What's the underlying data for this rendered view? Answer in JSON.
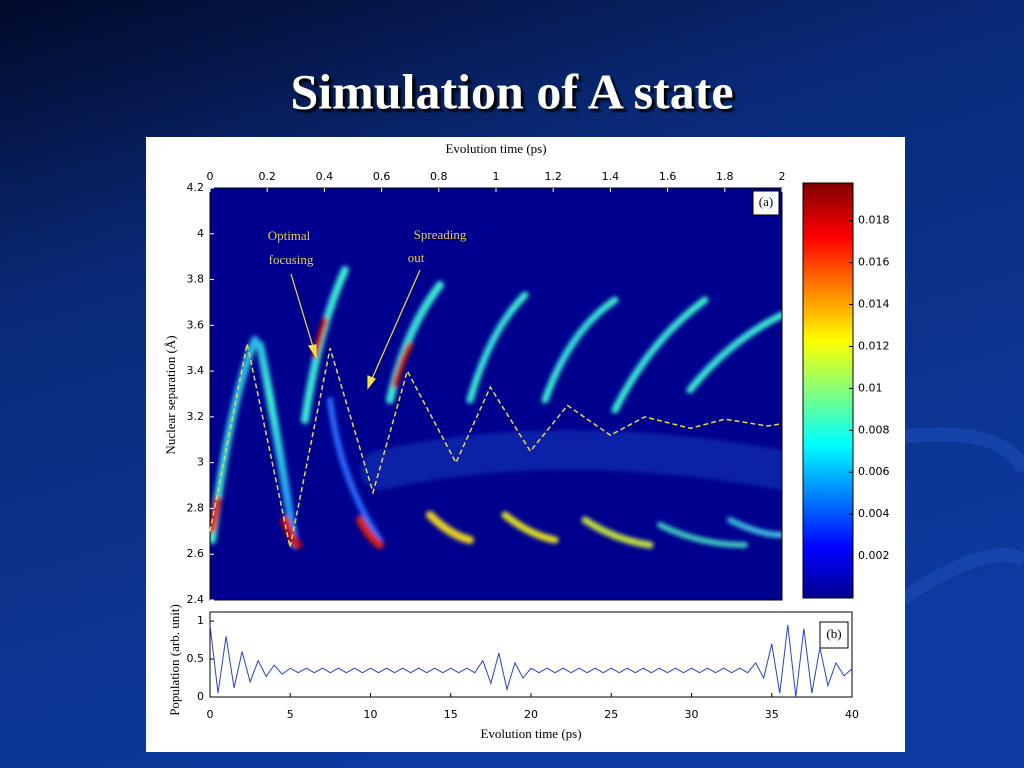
{
  "slide": {
    "title": "Simulation of A state"
  },
  "chart_data": [
    {
      "type": "heatmap",
      "x_label": "Evolution time (ps)",
      "y_label": "Nuclear separation (Å)",
      "panel_label": "(a)",
      "annotations": [
        [
          "Optimal",
          "focusing"
        ],
        [
          "Spreading",
          "out"
        ]
      ],
      "xlim": [
        0,
        2
      ],
      "xticks": [
        0,
        0.2,
        0.4,
        0.6,
        0.8,
        1,
        1.2,
        1.4,
        1.6,
        1.8,
        2
      ],
      "ylim": [
        2.4,
        4.2
      ],
      "yticks": [
        2.4,
        2.6,
        2.8,
        3,
        3.2,
        3.4,
        3.6,
        3.8,
        4,
        4.2
      ],
      "clim": [
        0,
        0.0198
      ],
      "cticks": [
        0.002,
        0.004,
        0.006,
        0.008,
        0.01,
        0.012,
        0.014,
        0.016,
        0.018
      ],
      "x": [
        0,
        0.13,
        0.28,
        0.42,
        0.57,
        0.69,
        0.86,
        0.98,
        1.12,
        1.25,
        1.4,
        1.52,
        1.68,
        1.8,
        1.95,
        2
      ],
      "series": [
        {
          "color": "#e2d84a",
          "values": [
            2.7,
            3.52,
            2.63,
            3.5,
            2.87,
            3.4,
            3.0,
            3.33,
            3.05,
            3.25,
            3.12,
            3.2,
            3.15,
            3.19,
            3.16,
            3.17
          ]
        }
      ]
    },
    {
      "type": "line",
      "x_label": "Evolution time (ps)",
      "y_label": "Population (arb. unit)",
      "panel_label": "(b)",
      "xlim": [
        0,
        40
      ],
      "xticks": [
        0,
        5,
        10,
        15,
        20,
        25,
        30,
        35,
        40
      ],
      "ylim": [
        0,
        1.12
      ],
      "yticks": [
        0,
        0.5,
        1
      ],
      "x": [
        0,
        0.5,
        1,
        1.5,
        2,
        2.5,
        3,
        3.5,
        4,
        4.5,
        5,
        5.5,
        6,
        6.5,
        7,
        7.5,
        8,
        8.5,
        9,
        9.5,
        10,
        10.5,
        11,
        11.5,
        12,
        12.5,
        13,
        13.5,
        14,
        14.5,
        15,
        15.5,
        16,
        16.5,
        17,
        17.5,
        18,
        18.5,
        19,
        19.5,
        20,
        20.5,
        21,
        21.5,
        22,
        22.5,
        23,
        23.5,
        24,
        24.5,
        25,
        25.5,
        26,
        26.5,
        27,
        27.5,
        28,
        28.5,
        29,
        29.5,
        30,
        30.5,
        31,
        31.5,
        32,
        32.5,
        33,
        33.5,
        34,
        34.5,
        35,
        35.5,
        36,
        36.5,
        37,
        37.5,
        38,
        38.5,
        39,
        39.5,
        40
      ],
      "series": [
        {
          "color": "#2a3fd8",
          "values": [
            0.95,
            0.05,
            0.8,
            0.12,
            0.6,
            0.2,
            0.48,
            0.27,
            0.42,
            0.3,
            0.38,
            0.32,
            0.38,
            0.32,
            0.38,
            0.32,
            0.38,
            0.32,
            0.38,
            0.32,
            0.38,
            0.32,
            0.38,
            0.32,
            0.38,
            0.32,
            0.38,
            0.32,
            0.38,
            0.32,
            0.38,
            0.32,
            0.38,
            0.32,
            0.48,
            0.18,
            0.58,
            0.1,
            0.45,
            0.25,
            0.38,
            0.32,
            0.38,
            0.32,
            0.38,
            0.32,
            0.38,
            0.32,
            0.38,
            0.32,
            0.38,
            0.32,
            0.38,
            0.32,
            0.38,
            0.32,
            0.38,
            0.32,
            0.38,
            0.32,
            0.38,
            0.32,
            0.38,
            0.32,
            0.38,
            0.32,
            0.38,
            0.32,
            0.45,
            0.25,
            0.7,
            0.05,
            0.95,
            0.0,
            0.9,
            0.05,
            0.65,
            0.15,
            0.45,
            0.28,
            0.37
          ]
        }
      ]
    }
  ]
}
